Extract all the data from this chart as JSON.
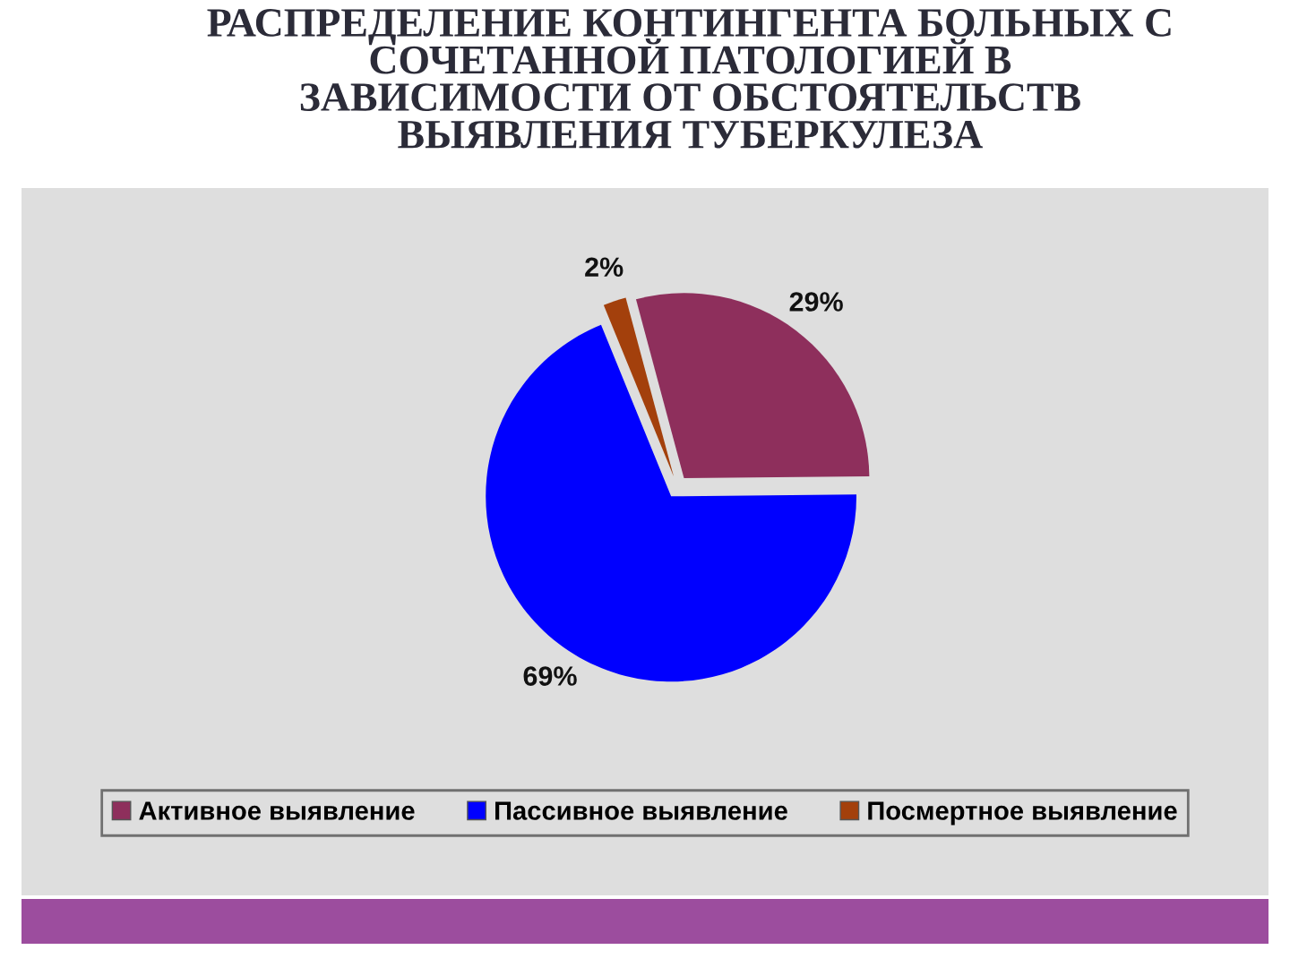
{
  "chart_data": {
    "type": "pie",
    "title": "РАСПРЕДЕЛЕНИЕ КОНТИНГЕНТА БОЛЬНЫХ С\nСОЧЕТАННОЙ ПАТОЛОГИЕЙ В\nЗАВИСИМОСТИ ОТ ОБСТОЯТЕЛЬСТВ\nВЫЯВЛЕНИЯ ТУБЕРКУЛЕЗА",
    "categories": [
      "Активное выявление",
      "Пассивное выявление",
      "Посмертное выявление"
    ],
    "values": [
      29,
      69,
      2
    ],
    "value_labels": [
      "29%",
      "69%",
      "2%"
    ],
    "colors": [
      "#8e2f5c",
      "#0000ff",
      "#a3400c"
    ],
    "legend": "bottom"
  }
}
